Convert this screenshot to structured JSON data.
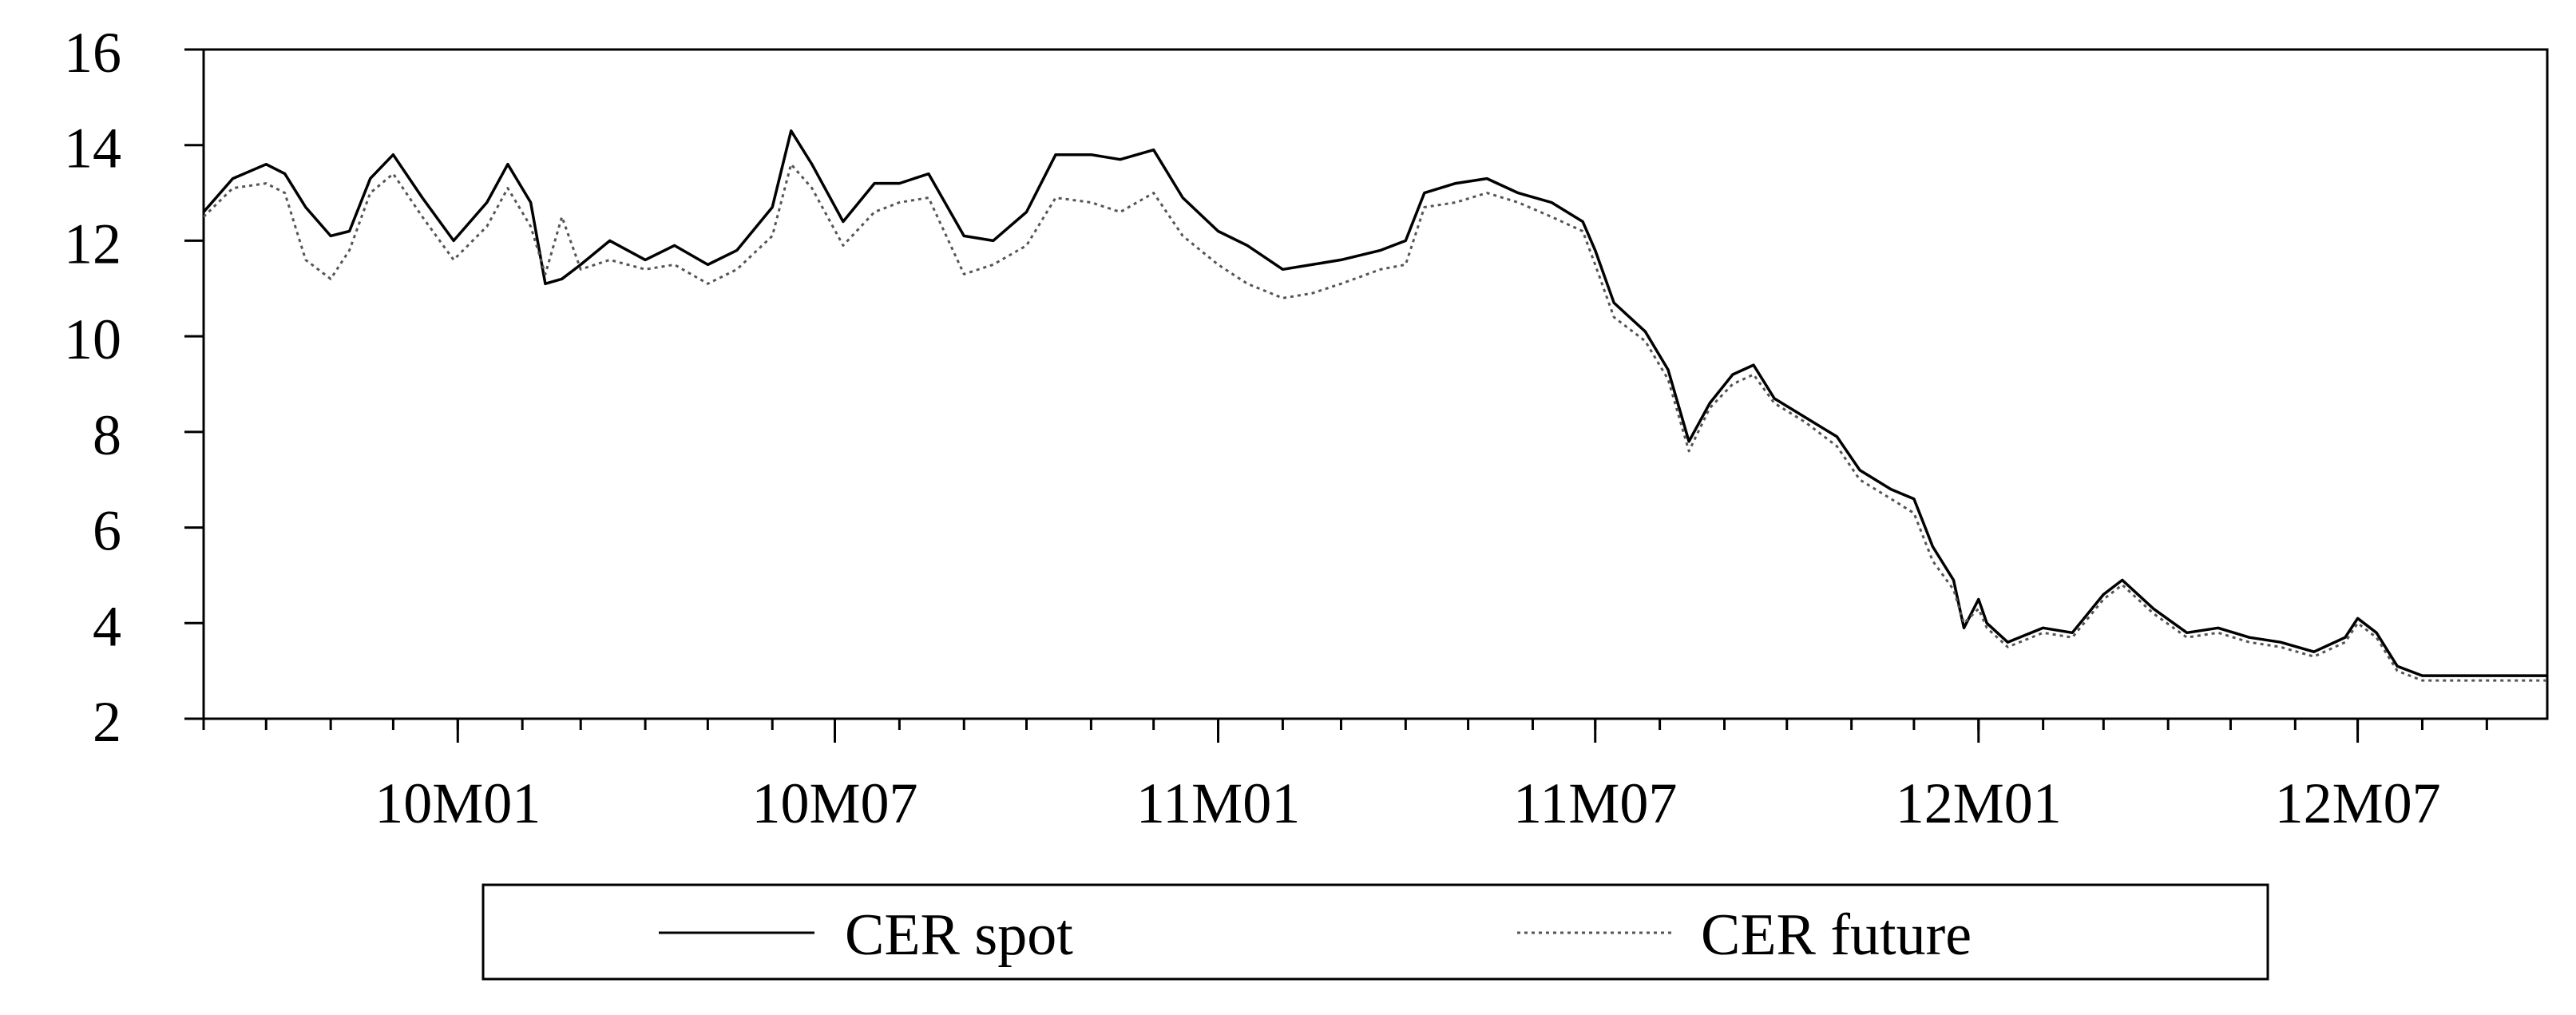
{
  "chart_data": {
    "type": "line",
    "title": "",
    "xlabel": "",
    "ylabel": "",
    "x_range": [
      "2009-09-01",
      "2012-09-30"
    ],
    "ylim": [
      2,
      16
    ],
    "y_ticks": [
      2,
      4,
      6,
      8,
      10,
      12,
      14,
      16
    ],
    "x_ticks": [
      {
        "date": "2010-01-01",
        "label": "10M01"
      },
      {
        "date": "2010-07-01",
        "label": "10M07"
      },
      {
        "date": "2011-01-01",
        "label": "11M01"
      },
      {
        "date": "2011-07-01",
        "label": "11M07"
      },
      {
        "date": "2012-01-01",
        "label": "12M01"
      },
      {
        "date": "2012-07-01",
        "label": "12M07"
      }
    ],
    "grid": false,
    "legend_position": "bottom",
    "series": [
      {
        "name": "CER spot",
        "color": "#000000",
        "style": "solid",
        "points": [
          [
            "2009-09-01",
            12.6
          ],
          [
            "2009-09-15",
            13.3
          ],
          [
            "2009-10-01",
            13.6
          ],
          [
            "2009-10-10",
            13.4
          ],
          [
            "2009-10-20",
            12.7
          ],
          [
            "2009-11-01",
            12.1
          ],
          [
            "2009-11-10",
            12.2
          ],
          [
            "2009-11-20",
            13.3
          ],
          [
            "2009-12-01",
            13.8
          ],
          [
            "2009-12-15",
            12.9
          ],
          [
            "2009-12-30",
            12.0
          ],
          [
            "2010-01-15",
            12.8
          ],
          [
            "2010-01-25",
            13.6
          ],
          [
            "2010-02-05",
            12.8
          ],
          [
            "2010-02-12",
            11.1
          ],
          [
            "2010-02-20",
            11.2
          ],
          [
            "2010-03-01",
            11.5
          ],
          [
            "2010-03-15",
            12.0
          ],
          [
            "2010-04-01",
            11.6
          ],
          [
            "2010-04-15",
            11.9
          ],
          [
            "2010-05-01",
            11.5
          ],
          [
            "2010-05-15",
            11.8
          ],
          [
            "2010-06-01",
            12.7
          ],
          [
            "2010-06-10",
            14.3
          ],
          [
            "2010-06-20",
            13.6
          ],
          [
            "2010-07-05",
            12.4
          ],
          [
            "2010-07-20",
            13.2
          ],
          [
            "2010-08-01",
            13.2
          ],
          [
            "2010-08-15",
            13.4
          ],
          [
            "2010-09-01",
            12.1
          ],
          [
            "2010-09-15",
            12.0
          ],
          [
            "2010-10-01",
            12.6
          ],
          [
            "2010-10-15",
            13.8
          ],
          [
            "2010-11-01",
            13.8
          ],
          [
            "2010-11-15",
            13.7
          ],
          [
            "2010-12-01",
            13.9
          ],
          [
            "2010-12-15",
            12.9
          ],
          [
            "2011-01-01",
            12.2
          ],
          [
            "2011-01-15",
            11.9
          ],
          [
            "2011-02-01",
            11.4
          ],
          [
            "2011-02-15",
            11.5
          ],
          [
            "2011-03-01",
            11.6
          ],
          [
            "2011-03-20",
            11.8
          ],
          [
            "2011-04-01",
            12.0
          ],
          [
            "2011-04-10",
            13.0
          ],
          [
            "2011-04-25",
            13.2
          ],
          [
            "2011-05-10",
            13.3
          ],
          [
            "2011-05-25",
            13.0
          ],
          [
            "2011-06-10",
            12.8
          ],
          [
            "2011-06-25",
            12.4
          ],
          [
            "2011-07-01",
            11.8
          ],
          [
            "2011-07-10",
            10.7
          ],
          [
            "2011-07-25",
            10.1
          ],
          [
            "2011-08-05",
            9.3
          ],
          [
            "2011-08-15",
            7.8
          ],
          [
            "2011-08-25",
            8.6
          ],
          [
            "2011-09-05",
            9.2
          ],
          [
            "2011-09-15",
            9.4
          ],
          [
            "2011-09-25",
            8.7
          ],
          [
            "2011-10-10",
            8.3
          ],
          [
            "2011-10-25",
            7.9
          ],
          [
            "2011-11-05",
            7.2
          ],
          [
            "2011-11-20",
            6.8
          ],
          [
            "2011-12-01",
            6.6
          ],
          [
            "2011-12-10",
            5.6
          ],
          [
            "2011-12-20",
            4.9
          ],
          [
            "2011-12-25",
            3.9
          ],
          [
            "2012-01-01",
            4.5
          ],
          [
            "2012-01-05",
            4.0
          ],
          [
            "2012-01-15",
            3.6
          ],
          [
            "2012-02-01",
            3.9
          ],
          [
            "2012-02-15",
            3.8
          ],
          [
            "2012-03-01",
            4.6
          ],
          [
            "2012-03-10",
            4.9
          ],
          [
            "2012-03-25",
            4.3
          ],
          [
            "2012-04-10",
            3.8
          ],
          [
            "2012-04-25",
            3.9
          ],
          [
            "2012-05-10",
            3.7
          ],
          [
            "2012-05-25",
            3.6
          ],
          [
            "2012-06-10",
            3.4
          ],
          [
            "2012-06-25",
            3.7
          ],
          [
            "2012-07-01",
            4.1
          ],
          [
            "2012-07-10",
            3.8
          ],
          [
            "2012-07-20",
            3.1
          ],
          [
            "2012-08-01",
            2.9
          ],
          [
            "2012-08-20",
            2.9
          ],
          [
            "2012-09-15",
            2.9
          ],
          [
            "2012-09-30",
            2.9
          ]
        ]
      },
      {
        "name": "CER future",
        "color": "#555555",
        "style": "dotted",
        "points": [
          [
            "2009-09-01",
            12.5
          ],
          [
            "2009-09-15",
            13.1
          ],
          [
            "2009-10-01",
            13.2
          ],
          [
            "2009-10-10",
            13.0
          ],
          [
            "2009-10-20",
            11.6
          ],
          [
            "2009-11-01",
            11.2
          ],
          [
            "2009-11-10",
            11.8
          ],
          [
            "2009-11-20",
            13.0
          ],
          [
            "2009-12-01",
            13.4
          ],
          [
            "2009-12-15",
            12.5
          ],
          [
            "2009-12-30",
            11.6
          ],
          [
            "2010-01-15",
            12.3
          ],
          [
            "2010-01-25",
            13.1
          ],
          [
            "2010-02-05",
            12.3
          ],
          [
            "2010-02-12",
            11.3
          ],
          [
            "2010-02-20",
            12.5
          ],
          [
            "2010-03-01",
            11.4
          ],
          [
            "2010-03-15",
            11.6
          ],
          [
            "2010-04-01",
            11.4
          ],
          [
            "2010-04-15",
            11.5
          ],
          [
            "2010-05-01",
            11.1
          ],
          [
            "2010-05-15",
            11.4
          ],
          [
            "2010-06-01",
            12.1
          ],
          [
            "2010-06-10",
            13.6
          ],
          [
            "2010-06-20",
            13.1
          ],
          [
            "2010-07-05",
            11.9
          ],
          [
            "2010-07-20",
            12.6
          ],
          [
            "2010-08-01",
            12.8
          ],
          [
            "2010-08-15",
            12.9
          ],
          [
            "2010-09-01",
            11.3
          ],
          [
            "2010-09-15",
            11.5
          ],
          [
            "2010-10-01",
            11.9
          ],
          [
            "2010-10-15",
            12.9
          ],
          [
            "2010-11-01",
            12.8
          ],
          [
            "2010-11-15",
            12.6
          ],
          [
            "2010-12-01",
            13.0
          ],
          [
            "2010-12-15",
            12.1
          ],
          [
            "2011-01-01",
            11.5
          ],
          [
            "2011-01-15",
            11.1
          ],
          [
            "2011-02-01",
            10.8
          ],
          [
            "2011-02-15",
            10.9
          ],
          [
            "2011-03-01",
            11.1
          ],
          [
            "2011-03-20",
            11.4
          ],
          [
            "2011-04-01",
            11.5
          ],
          [
            "2011-04-10",
            12.7
          ],
          [
            "2011-04-25",
            12.8
          ],
          [
            "2011-05-10",
            13.0
          ],
          [
            "2011-05-25",
            12.8
          ],
          [
            "2011-06-10",
            12.5
          ],
          [
            "2011-06-25",
            12.2
          ],
          [
            "2011-07-01",
            11.5
          ],
          [
            "2011-07-10",
            10.4
          ],
          [
            "2011-07-25",
            9.9
          ],
          [
            "2011-08-05",
            9.1
          ],
          [
            "2011-08-15",
            7.6
          ],
          [
            "2011-08-25",
            8.5
          ],
          [
            "2011-09-05",
            9.0
          ],
          [
            "2011-09-15",
            9.2
          ],
          [
            "2011-09-25",
            8.6
          ],
          [
            "2011-10-10",
            8.2
          ],
          [
            "2011-10-25",
            7.7
          ],
          [
            "2011-11-05",
            7.0
          ],
          [
            "2011-11-20",
            6.6
          ],
          [
            "2011-12-01",
            6.3
          ],
          [
            "2011-12-10",
            5.3
          ],
          [
            "2011-12-20",
            4.7
          ],
          [
            "2011-12-25",
            4.0
          ],
          [
            "2012-01-01",
            4.3
          ],
          [
            "2012-01-05",
            3.9
          ],
          [
            "2012-01-15",
            3.5
          ],
          [
            "2012-02-01",
            3.8
          ],
          [
            "2012-02-15",
            3.7
          ],
          [
            "2012-03-01",
            4.5
          ],
          [
            "2012-03-10",
            4.8
          ],
          [
            "2012-03-25",
            4.2
          ],
          [
            "2012-04-10",
            3.7
          ],
          [
            "2012-04-25",
            3.8
          ],
          [
            "2012-05-10",
            3.6
          ],
          [
            "2012-05-25",
            3.5
          ],
          [
            "2012-06-10",
            3.3
          ],
          [
            "2012-06-25",
            3.6
          ],
          [
            "2012-07-01",
            4.0
          ],
          [
            "2012-07-10",
            3.7
          ],
          [
            "2012-07-20",
            3.0
          ],
          [
            "2012-08-01",
            2.8
          ],
          [
            "2012-08-20",
            2.8
          ],
          [
            "2012-09-15",
            2.8
          ],
          [
            "2012-09-30",
            2.8
          ]
        ]
      }
    ]
  }
}
